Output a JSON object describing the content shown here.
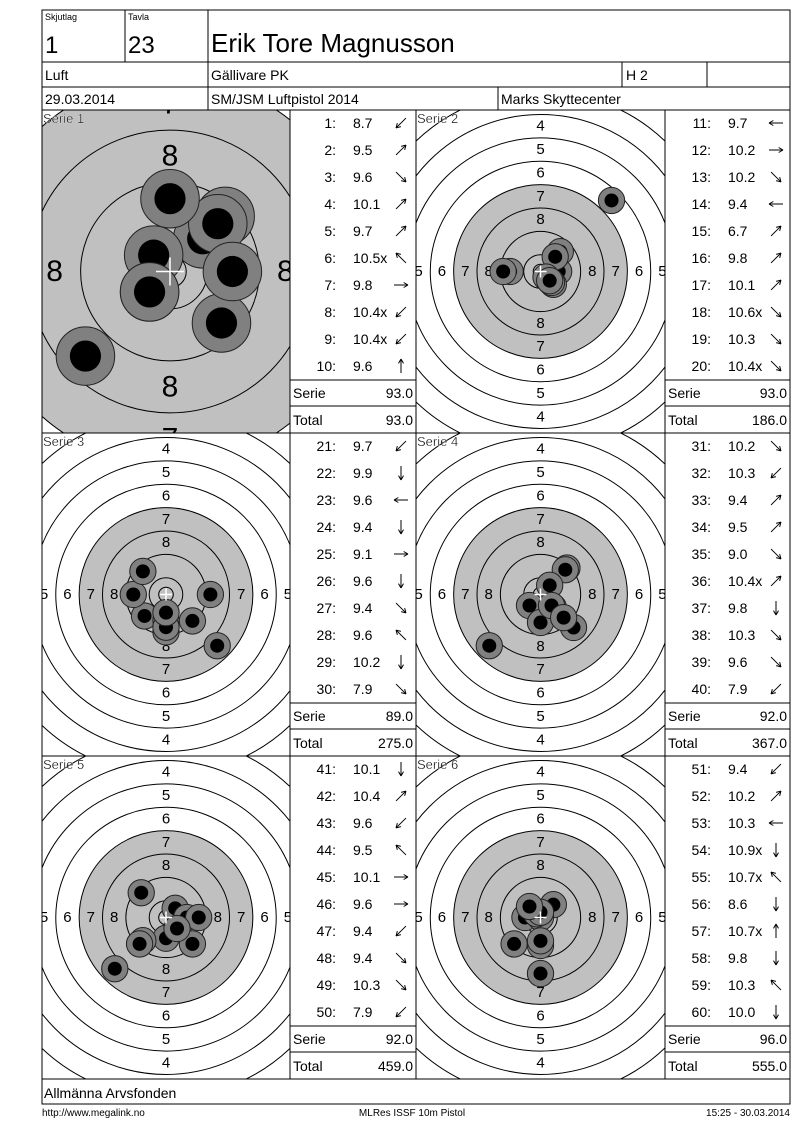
{
  "header": {
    "squad_label": "Skjutlag",
    "squad": 1,
    "target_label": "Tavla",
    "target": 23,
    "name": "Erik Tore Magnusson",
    "discipline": "Luft",
    "club": "Gällivare PK",
    "class": "H 2",
    "date": "29.03.2014",
    "competition": "SM/JSM Luftpistol 2014",
    "venue": "Marks Skyttecenter"
  },
  "labels": {
    "serie": "Serie",
    "total": "Total"
  },
  "ring_labels": [
    4,
    5,
    6,
    7,
    8
  ],
  "series": [
    {
      "title": "Serie 1",
      "shots": [
        {
          "no": "1:",
          "score": 8.7
        },
        {
          "no": "2:",
          "score": 9.5
        },
        {
          "no": "3:",
          "score": 9.6
        },
        {
          "no": "4:",
          "score": 10.1
        },
        {
          "no": "5:",
          "score": 9.7
        },
        {
          "no": "6:",
          "score": {
            "value": 10.5,
            "label": "10.5x"
          }
        },
        {
          "no": "7:",
          "score": 9.8
        },
        {
          "no": "8:",
          "score": {
            "value": 10.4,
            "label": "10.4x"
          }
        },
        {
          "no": "9:",
          "score": {
            "value": 10.4,
            "label": "10.4x"
          }
        },
        {
          "no": "10:",
          "score": 9.6
        }
      ],
      "serie": {
        "value": 93,
        "label": "93.0"
      },
      "total": {
        "value": 93,
        "label": "93.0"
      }
    },
    {
      "title": "Serie 2",
      "shots": [
        {
          "no": "11:",
          "score": 9.7
        },
        {
          "no": "12:",
          "score": 10.2
        },
        {
          "no": "13:",
          "score": 10.2
        },
        {
          "no": "14:",
          "score": 9.4
        },
        {
          "no": "15:",
          "score": 6.7
        },
        {
          "no": "16:",
          "score": 9.8
        },
        {
          "no": "17:",
          "score": 10.1
        },
        {
          "no": "18:",
          "score": {
            "value": 10.6,
            "label": "10.6x"
          }
        },
        {
          "no": "19:",
          "score": 10.3
        },
        {
          "no": "20:",
          "score": {
            "value": 10.4,
            "label": "10.4x"
          }
        }
      ],
      "serie": {
        "value": 93,
        "label": "93.0"
      },
      "total": {
        "value": 186,
        "label": "186.0"
      }
    },
    {
      "title": "Serie 3",
      "shots": [
        {
          "no": "21:",
          "score": 9.7
        },
        {
          "no": "22:",
          "score": 9.9
        },
        {
          "no": "23:",
          "score": 9.6
        },
        {
          "no": "24:",
          "score": 9.4
        },
        {
          "no": "25:",
          "score": 9.1
        },
        {
          "no": "26:",
          "score": 9.6
        },
        {
          "no": "27:",
          "score": 9.4
        },
        {
          "no": "28:",
          "score": 9.6
        },
        {
          "no": "29:",
          "score": 10.2
        },
        {
          "no": "30:",
          "score": 7.9
        }
      ],
      "serie": {
        "value": 89,
        "label": "89.0"
      },
      "total": {
        "value": 275,
        "label": "275.0"
      }
    },
    {
      "title": "Serie 4",
      "shots": [
        {
          "no": "31:",
          "score": 10.2
        },
        {
          "no": "32:",
          "score": 10.3
        },
        {
          "no": "33:",
          "score": 9.4
        },
        {
          "no": "34:",
          "score": 9.5
        },
        {
          "no": "35:",
          "score": {
            "value": 9,
            "label": "9.0"
          }
        },
        {
          "no": "36:",
          "score": {
            "value": 10.4,
            "label": "10.4x"
          }
        },
        {
          "no": "37:",
          "score": 9.8
        },
        {
          "no": "38:",
          "score": 10.3
        },
        {
          "no": "39:",
          "score": 9.6
        },
        {
          "no": "40:",
          "score": 7.9
        }
      ],
      "serie": {
        "value": 92,
        "label": "92.0"
      },
      "total": {
        "value": 367,
        "label": "367.0"
      }
    },
    {
      "title": "Serie 5",
      "shots": [
        {
          "no": "41:",
          "score": 10.1
        },
        {
          "no": "42:",
          "score": 10.4
        },
        {
          "no": "43:",
          "score": 9.6
        },
        {
          "no": "44:",
          "score": 9.5
        },
        {
          "no": "45:",
          "score": 10.1
        },
        {
          "no": "46:",
          "score": 9.6
        },
        {
          "no": "47:",
          "score": 9.4
        },
        {
          "no": "48:",
          "score": 9.4
        },
        {
          "no": "49:",
          "score": 10.3
        },
        {
          "no": "50:",
          "score": 7.9
        }
      ],
      "serie": {
        "value": 92,
        "label": "92.0"
      },
      "total": {
        "value": 459,
        "label": "459.0"
      }
    },
    {
      "title": "Serie 6",
      "shots": [
        {
          "no": "51:",
          "score": 9.4
        },
        {
          "no": "52:",
          "score": 10.2
        },
        {
          "no": "53:",
          "score": 10.3
        },
        {
          "no": "54:",
          "score": {
            "value": 10.9,
            "label": "10.9x"
          }
        },
        {
          "no": "55:",
          "score": {
            "value": 10.7,
            "label": "10.7x"
          }
        },
        {
          "no": "56:",
          "score": 8.6
        },
        {
          "no": "57:",
          "score": {
            "value": 10.7,
            "label": "10.7x"
          }
        },
        {
          "no": "58:",
          "score": 9.8
        },
        {
          "no": "59:",
          "score": 10.3
        },
        {
          "no": "60:",
          "score": {
            "value": 10,
            "label": "10.0"
          }
        }
      ],
      "serie": {
        "value": 96,
        "label": "96.0"
      },
      "total": {
        "value": 555,
        "label": "555.0"
      }
    }
  ],
  "sponsor": "Allmänna Arvsfonden",
  "footer": {
    "url": "http://www.megalink.no",
    "software": "MLRes ISSF 10m Pistol",
    "timestamp": "15:25 - 30.03.2014"
  }
}
